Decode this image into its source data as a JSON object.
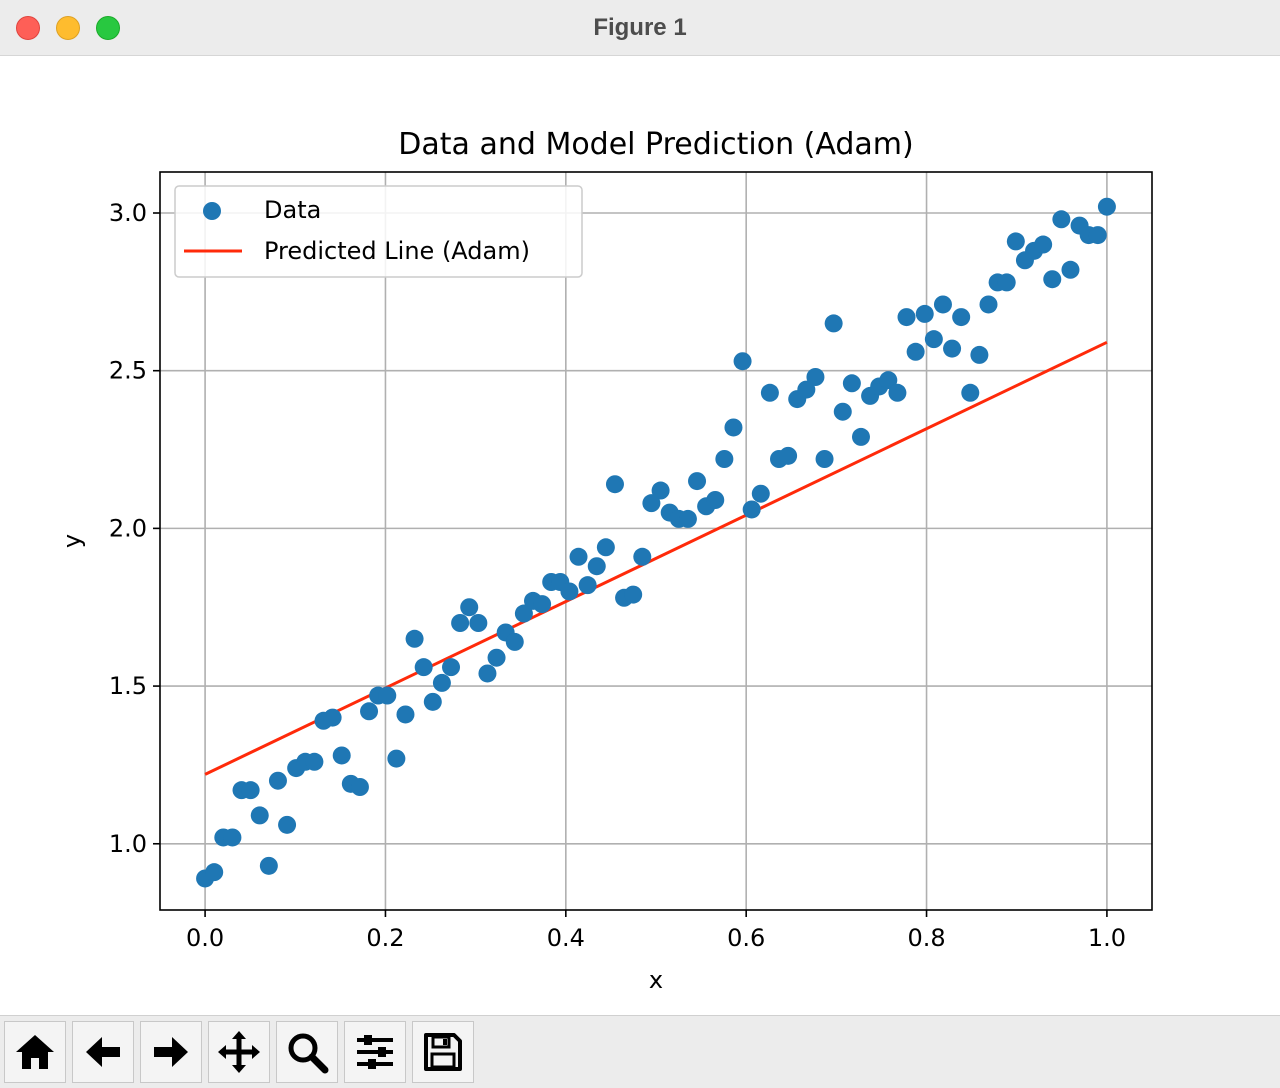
{
  "window": {
    "title": "Figure 1"
  },
  "toolbar": {
    "buttons": [
      {
        "name": "home-button",
        "icon": "home-icon"
      },
      {
        "name": "back-button",
        "icon": "arrow-left-icon"
      },
      {
        "name": "forward-button",
        "icon": "arrow-right-icon"
      },
      {
        "name": "pan-button",
        "icon": "move-icon"
      },
      {
        "name": "zoom-button",
        "icon": "magnifier-icon"
      },
      {
        "name": "configure-subplots-button",
        "icon": "sliders-icon"
      },
      {
        "name": "save-button",
        "icon": "floppy-disk-icon"
      }
    ]
  },
  "chart_data": {
    "type": "scatter",
    "title": "Data and Model Prediction (Adam)",
    "xlabel": "x",
    "ylabel": "y",
    "xlim": [
      -0.05,
      1.05
    ],
    "ylim": [
      0.79,
      3.13
    ],
    "xticks": [
      0.0,
      0.2,
      0.4,
      0.6,
      0.8,
      1.0
    ],
    "xtick_labels": [
      "0.0",
      "0.2",
      "0.4",
      "0.6",
      "0.8",
      "1.0"
    ],
    "yticks": [
      1.0,
      1.5,
      2.0,
      2.5,
      3.0
    ],
    "ytick_labels": [
      "1.0",
      "1.5",
      "2.0",
      "2.5",
      "3.0"
    ],
    "grid": true,
    "legend_position": "upper-left",
    "series": [
      {
        "name": "Data",
        "kind": "scatter",
        "color": "#1f77b4",
        "x": [
          0.0,
          0.0101,
          0.0202,
          0.0303,
          0.0404,
          0.0505,
          0.0606,
          0.0707,
          0.0808,
          0.0909,
          0.101,
          0.1111,
          0.1212,
          0.1313,
          0.1414,
          0.1515,
          0.1616,
          0.1717,
          0.1818,
          0.1919,
          0.202,
          0.2121,
          0.2222,
          0.2323,
          0.2424,
          0.2525,
          0.2626,
          0.2727,
          0.2828,
          0.2929,
          0.303,
          0.3131,
          0.3232,
          0.3333,
          0.3434,
          0.3535,
          0.3636,
          0.3737,
          0.3838,
          0.3939,
          0.404,
          0.4141,
          0.4242,
          0.4343,
          0.4444,
          0.4545,
          0.4646,
          0.4747,
          0.4848,
          0.4949,
          0.5051,
          0.5152,
          0.5253,
          0.5354,
          0.5455,
          0.5556,
          0.5657,
          0.5758,
          0.5859,
          0.596,
          0.6061,
          0.6162,
          0.6263,
          0.6364,
          0.6465,
          0.6566,
          0.6667,
          0.6768,
          0.6869,
          0.697,
          0.7071,
          0.7172,
          0.7273,
          0.7374,
          0.7475,
          0.7576,
          0.7677,
          0.7778,
          0.7879,
          0.798,
          0.8081,
          0.8182,
          0.8283,
          0.8384,
          0.8485,
          0.8586,
          0.8687,
          0.8788,
          0.8889,
          0.899,
          0.9091,
          0.9192,
          0.9293,
          0.9394,
          0.9495,
          0.9596,
          0.9697,
          0.9798,
          0.9899,
          1.0
        ],
        "y": [
          0.89,
          0.91,
          1.02,
          1.02,
          1.17,
          1.17,
          1.09,
          0.93,
          1.2,
          1.06,
          1.24,
          1.26,
          1.26,
          1.39,
          1.4,
          1.28,
          1.19,
          1.18,
          1.42,
          1.47,
          1.47,
          1.27,
          1.41,
          1.65,
          1.56,
          1.45,
          1.51,
          1.56,
          1.7,
          1.75,
          1.7,
          1.54,
          1.59,
          1.67,
          1.64,
          1.73,
          1.77,
          1.76,
          1.83,
          1.83,
          1.8,
          1.91,
          1.82,
          1.88,
          1.94,
          2.14,
          1.78,
          1.79,
          1.91,
          2.08,
          2.12,
          2.05,
          2.03,
          2.03,
          2.15,
          2.07,
          2.09,
          2.22,
          2.32,
          2.53,
          2.06,
          2.11,
          2.43,
          2.22,
          2.23,
          2.41,
          2.44,
          2.48,
          2.22,
          2.65,
          2.37,
          2.46,
          2.29,
          2.42,
          2.45,
          2.47,
          2.43,
          2.67,
          2.56,
          2.68,
          2.6,
          2.71,
          2.57,
          2.67,
          2.43,
          2.55,
          2.71,
          2.78,
          2.78,
          2.91,
          2.85,
          2.88,
          2.9,
          2.79,
          2.98,
          2.82,
          2.96,
          2.93,
          2.93,
          3.02
        ]
      },
      {
        "name": "Predicted Line (Adam)",
        "kind": "line",
        "color": "#ff2a0a",
        "x": [
          0.0,
          1.0
        ],
        "y": [
          1.22,
          2.59
        ]
      }
    ]
  }
}
